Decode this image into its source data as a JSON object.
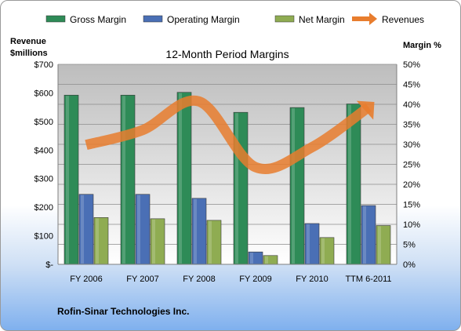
{
  "chart_data": {
    "type": "bar",
    "title": "12-Month Period Margins",
    "y_left_label": [
      "Revenue",
      "$millions"
    ],
    "y_right_label": "Margin %",
    "categories": [
      "FY 2006",
      "FY 2007",
      "FY 2008",
      "FY 2009",
      "FY 2010",
      "TTM 6-2011"
    ],
    "ylim_left": [
      0,
      700
    ],
    "yticks_left": [
      "$-",
      "$100",
      "$200",
      "$300",
      "$400",
      "$500",
      "$600",
      "$700"
    ],
    "ylim_right": [
      0,
      50
    ],
    "yticks_right": [
      "0%",
      "5%",
      "10%",
      "15%",
      "20%",
      "25%",
      "30%",
      "35%",
      "40%",
      "45%",
      "50%"
    ],
    "series": [
      {
        "name": "Gross Margin",
        "type": "bar",
        "axis": "right",
        "color": "#2e8b57",
        "values": [
          42.3,
          42.3,
          43.0,
          38.0,
          39.2,
          40.1
        ]
      },
      {
        "name": "Operating Margin",
        "type": "bar",
        "axis": "right",
        "color": "#4a6fb5",
        "values": [
          17.5,
          17.5,
          16.5,
          3.1,
          10.2,
          14.7
        ]
      },
      {
        "name": "Net Margin",
        "type": "bar",
        "axis": "right",
        "color": "#8fac52",
        "values": [
          11.7,
          11.4,
          11.0,
          2.2,
          6.7,
          9.7
        ]
      },
      {
        "name": "Revenues",
        "type": "line",
        "axis": "left",
        "color": "#e87d2e",
        "values": [
          418,
          470,
          570,
          340,
          410,
          550
        ]
      }
    ],
    "grid": true,
    "legend_position": "top"
  },
  "footer": "Rofin-Sinar Technologies Inc."
}
